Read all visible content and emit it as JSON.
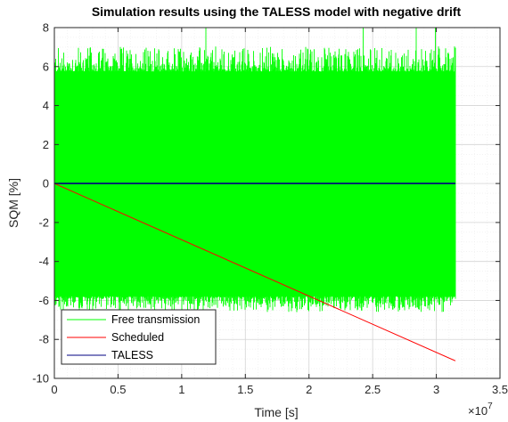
{
  "chart_data": {
    "type": "line",
    "title": "Simulation results using the TALESS model with negative drift",
    "xlabel": "Time [s]",
    "ylabel": "SQM [%]",
    "x_multiplier_label": "×10",
    "x_multiplier_exp": "7",
    "xlim": [
      0,
      3.5
    ],
    "ylim": [
      -10,
      8
    ],
    "x_ticks": [
      0,
      0.5,
      1,
      1.5,
      2,
      2.5,
      3,
      3.5
    ],
    "x_tick_labels": [
      "0",
      "0.5",
      "1",
      "1.5",
      "2",
      "2.5",
      "3",
      "3.5"
    ],
    "y_ticks": [
      -10,
      -8,
      -6,
      -4,
      -2,
      0,
      2,
      4,
      6,
      8
    ],
    "y_tick_labels": [
      "-10",
      "-8",
      "-6",
      "-4",
      "-2",
      "0",
      "2",
      "4",
      "6",
      "8"
    ],
    "grid": true,
    "minor_grid": true,
    "legend_position": "bottom-left",
    "series": [
      {
        "name": "Free transmission",
        "color": "#00ff00",
        "style": "noise band",
        "x_range": [
          0,
          3.15
        ],
        "band_typical": [
          -6.0,
          6.0
        ],
        "peak_max": 8.0,
        "peak_min": -6.8
      },
      {
        "name": "Scheduled",
        "color": "#ff0000",
        "x": [
          0,
          3.15
        ],
        "y": [
          0,
          -9.1
        ]
      },
      {
        "name": "TALESS",
        "color": "#000080",
        "x": [
          0,
          3.15
        ],
        "y": [
          0,
          0
        ]
      }
    ]
  }
}
